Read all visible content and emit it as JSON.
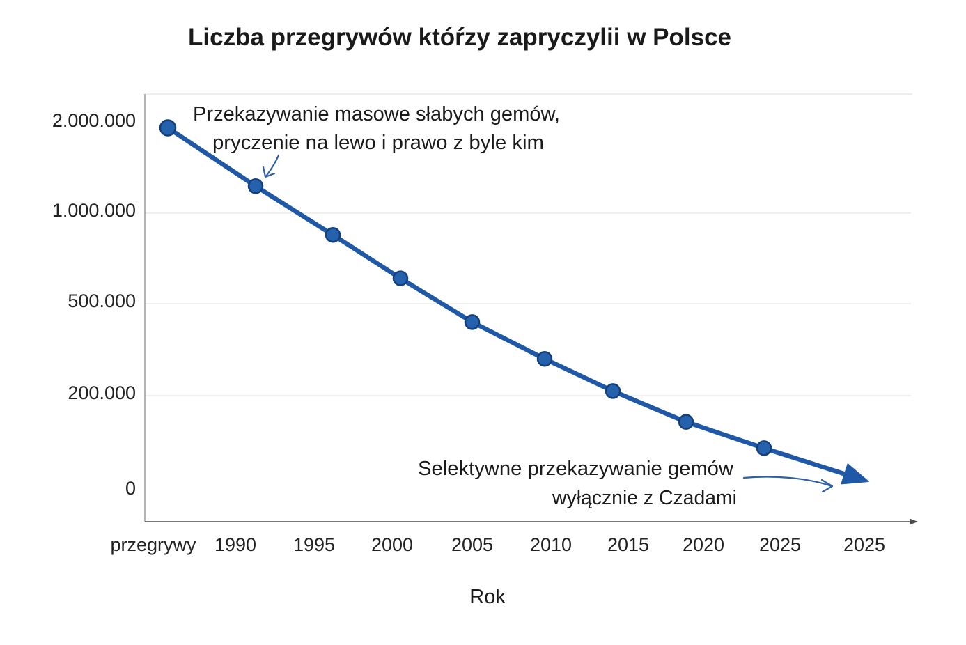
{
  "chart_data": {
    "type": "line",
    "title": "Liczba przegrywów któŕzy zapryczylii w Polsce",
    "xlabel": "Rok",
    "categories": [
      "przegrywy",
      "1990",
      "1995",
      "2000",
      "2005",
      "2010",
      "2015",
      "2020",
      "2025",
      "2025"
    ],
    "series": [
      {
        "values": [
          1950000,
          1300000,
          880000,
          640000,
          440000,
          320000,
          215000,
          145000,
          90000,
          20000
        ]
      }
    ],
    "yticks": [
      2000000,
      1000000,
      500000,
      200000,
      0
    ],
    "ytick_labels": [
      "2.000.000",
      "1.000.000",
      "500.000",
      "200.000",
      "0"
    ],
    "ylim": [
      0,
      2000000
    ],
    "yscale": "irregular",
    "grid": true,
    "legend": "none",
    "markers": "circle",
    "line_end": "arrow",
    "annotations": [
      {
        "lines": [
          "Przekazywanie masowe słabych gemów,",
          "pryczenie na lewo i prawo z byle kim"
        ]
      },
      {
        "lines": [
          "Selektywne przekazywanie gemów",
          "wyłącznie z Czadami"
        ]
      }
    ],
    "colors": {
      "line": "#1e58a6",
      "marker": "#2562ae",
      "marker_edge": "#143f7b",
      "grid": "#e6e6e6",
      "annotation_arrow": "#2c5fa6"
    }
  }
}
